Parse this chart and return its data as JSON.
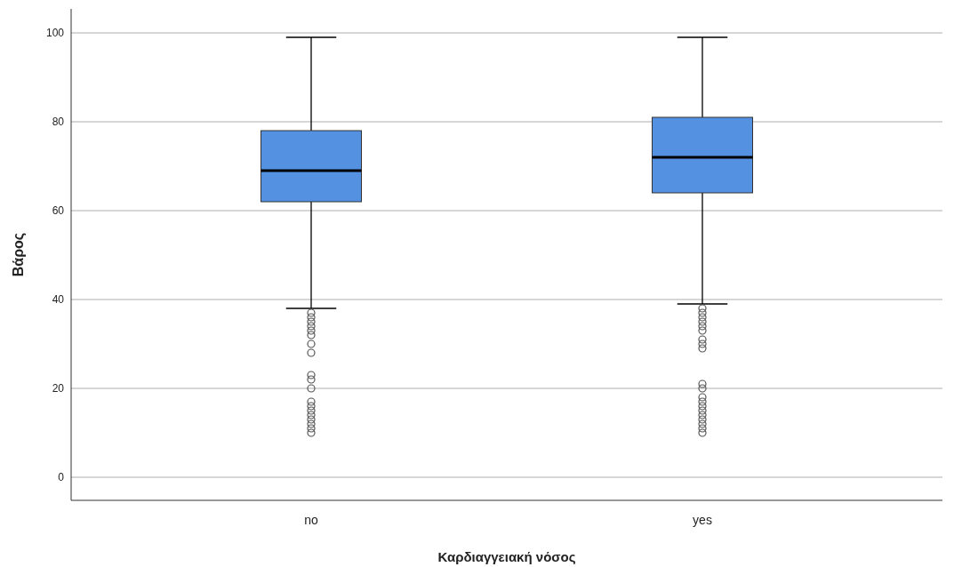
{
  "chart_data": {
    "type": "box",
    "xlabel": "Καρδιαγγειακή νόσος",
    "ylabel": "Βάρος",
    "categories": [
      "no",
      "yes"
    ],
    "color": "#5591e1",
    "boxes": [
      {
        "low": 38,
        "q1": 62,
        "median": 69,
        "q3": 78,
        "high": 99,
        "outliers": [
          37,
          36,
          35,
          34,
          33,
          32,
          30,
          28,
          23,
          22,
          20,
          17,
          16,
          15,
          14,
          13,
          12,
          11,
          10
        ]
      },
      {
        "low": 39,
        "q1": 64,
        "median": 72,
        "q3": 81,
        "high": 99,
        "outliers": [
          38,
          37,
          36,
          35,
          34,
          33,
          31,
          30,
          29,
          21,
          20,
          18,
          17,
          16,
          15,
          14,
          13,
          12,
          11,
          10
        ]
      }
    ],
    "ylim": [
      -5.2,
      105.4
    ],
    "yticks": [
      0,
      20,
      40,
      60,
      80,
      100
    ],
    "grid": "y"
  }
}
